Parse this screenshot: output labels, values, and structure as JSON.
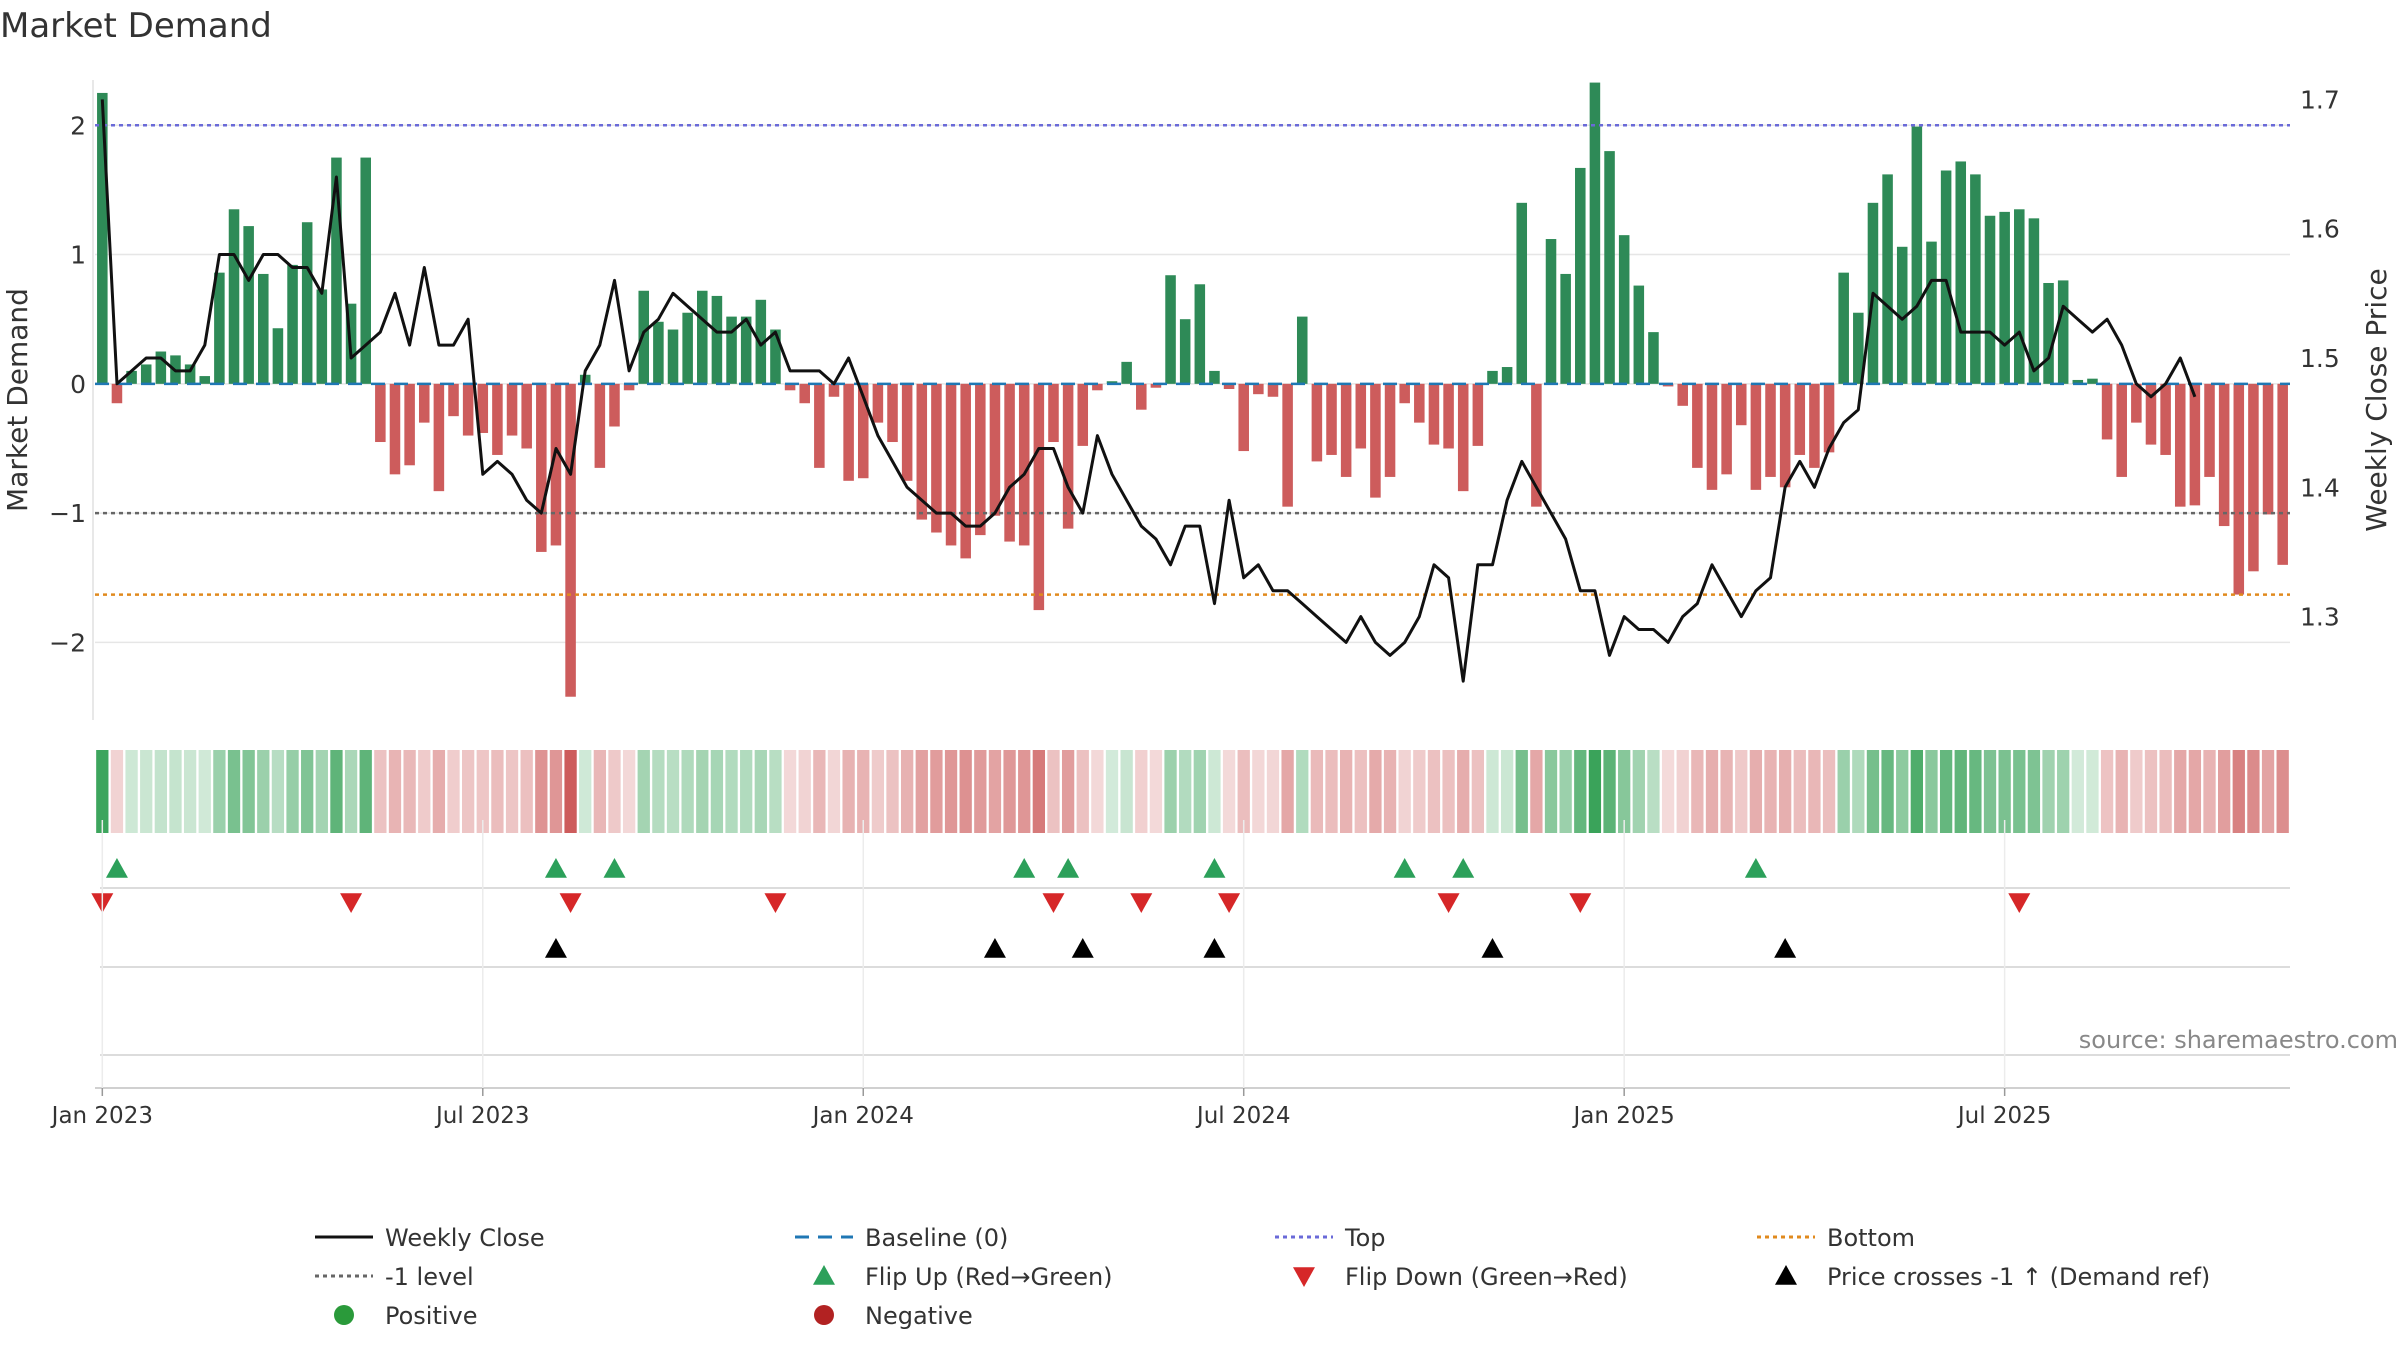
{
  "chart_data": {
    "type": "bar",
    "title": "Market Demand",
    "ylabel": "Market Demand",
    "y2label": "Weekly Close Price",
    "ylim": [
      -2.6,
      2.35
    ],
    "y2lim": [
      1.22,
      1.715
    ],
    "yticks": [
      2,
      1,
      0,
      -1,
      -2
    ],
    "yticklabels": [
      "2",
      "1",
      "0",
      "−1",
      "−2"
    ],
    "y2ticks": [
      1.7,
      1.6,
      1.5,
      1.4,
      1.3
    ],
    "y2ticklabels": [
      "1.7",
      "1.6",
      "1.5",
      "1.4",
      "1.3"
    ],
    "levels": {
      "top": 2.0,
      "minus_one": -1.0,
      "bottom": -1.63
    },
    "x_start": "2022-12-26",
    "x_step_weeks": 1,
    "xticks": [
      {
        "label": "Jan 2023",
        "week": 1
      },
      {
        "label": "Jul 2023",
        "week": 27
      },
      {
        "label": "Jan 2024",
        "week": 53
      },
      {
        "label": "Jul 2024",
        "week": 79
      },
      {
        "label": "Jan 2025",
        "week": 105
      },
      {
        "label": "Jul 2025",
        "week": 131
      }
    ],
    "series": [
      {
        "name": "Market Demand",
        "values": [
          2.25,
          -0.15,
          0.1,
          0.15,
          0.25,
          0.22,
          0.15,
          0.06,
          0.86,
          1.35,
          1.22,
          0.85,
          0.43,
          0.92,
          1.25,
          0.73,
          1.75,
          0.62,
          1.75,
          -0.45,
          -0.7,
          -0.63,
          -0.3,
          -0.83,
          -0.25,
          -0.4,
          -0.38,
          -0.55,
          -0.4,
          -0.5,
          -1.3,
          -1.25,
          -2.42,
          0.07,
          -0.65,
          -0.33,
          -0.05,
          0.72,
          0.48,
          0.42,
          0.55,
          0.72,
          0.68,
          0.52,
          0.52,
          0.65,
          0.42,
          -0.05,
          -0.15,
          -0.65,
          -0.1,
          -0.75,
          -0.73,
          -0.3,
          -0.45,
          -0.75,
          -1.05,
          -1.15,
          -1.25,
          -1.35,
          -1.17,
          -1.02,
          -1.22,
          -1.25,
          -1.75,
          -0.45,
          -1.12,
          -0.48,
          -0.05,
          0.02,
          0.17,
          -0.2,
          -0.03,
          0.84,
          0.5,
          0.77,
          0.1,
          -0.04,
          -0.52,
          -0.08,
          -0.1,
          -0.95,
          0.52,
          -0.6,
          -0.55,
          -0.72,
          -0.5,
          -0.88,
          -0.72,
          -0.15,
          -0.3,
          -0.47,
          -0.5,
          -0.83,
          -0.48,
          0.1,
          0.13,
          1.4,
          -0.95,
          1.12,
          0.85,
          1.67,
          2.33,
          1.8,
          1.15,
          0.76,
          0.4,
          -0.02,
          -0.17,
          -0.65,
          -0.82,
          -0.7,
          -0.32,
          -0.82,
          -0.72,
          -0.8,
          -0.55,
          -0.65,
          -0.53,
          0.86,
          0.55,
          1.4,
          1.62,
          1.06,
          1.99,
          1.1,
          1.65,
          1.72,
          1.62,
          1.3,
          1.33,
          1.35,
          1.28,
          0.78,
          0.8,
          0.03,
          0.04,
          -0.43,
          -0.72,
          -0.3,
          -0.47,
          -0.55,
          -0.95,
          -0.94,
          -0.72,
          -1.1,
          -1.63,
          -1.45,
          -1.01,
          -1.4
        ]
      },
      {
        "name": "Weekly Close",
        "values": [
          1.7,
          1.48,
          1.49,
          1.5,
          1.5,
          1.49,
          1.49,
          1.51,
          1.58,
          1.58,
          1.56,
          1.58,
          1.58,
          1.57,
          1.57,
          1.55,
          1.64,
          1.5,
          1.51,
          1.52,
          1.55,
          1.51,
          1.57,
          1.51,
          1.51,
          1.53,
          1.41,
          1.42,
          1.41,
          1.39,
          1.38,
          1.43,
          1.41,
          1.49,
          1.51,
          1.56,
          1.49,
          1.52,
          1.53,
          1.55,
          1.54,
          1.53,
          1.52,
          1.52,
          1.53,
          1.51,
          1.52,
          1.49,
          1.49,
          1.49,
          1.48,
          1.5,
          1.47,
          1.44,
          1.42,
          1.4,
          1.39,
          1.38,
          1.38,
          1.37,
          1.37,
          1.38,
          1.4,
          1.41,
          1.43,
          1.43,
          1.4,
          1.38,
          1.44,
          1.41,
          1.39,
          1.37,
          1.36,
          1.34,
          1.37,
          1.37,
          1.31,
          1.39,
          1.33,
          1.34,
          1.32,
          1.32,
          1.31,
          1.3,
          1.29,
          1.28,
          1.3,
          1.28,
          1.27,
          1.28,
          1.3,
          1.34,
          1.33,
          1.25,
          1.34,
          1.34,
          1.39,
          1.42,
          1.4,
          1.38,
          1.36,
          1.32,
          1.32,
          1.27,
          1.3,
          1.29,
          1.29,
          1.28,
          1.3,
          1.31,
          1.34,
          1.32,
          1.3,
          1.32,
          1.33,
          1.4,
          1.42,
          1.4,
          1.43,
          1.45,
          1.46,
          1.55,
          1.54,
          1.53,
          1.54,
          1.56,
          1.56,
          1.52,
          1.52,
          1.52,
          1.51,
          1.52,
          1.49,
          1.5,
          1.54,
          1.53,
          1.52,
          1.53,
          1.51,
          1.48,
          1.47,
          1.48,
          1.5,
          1.47
        ]
      }
    ],
    "flip_up_weeks": [
      2,
      32,
      36,
      64,
      67,
      77,
      90,
      94,
      114
    ],
    "flip_down_weeks": [
      1,
      18,
      33,
      47,
      66,
      72,
      78,
      93,
      102,
      132
    ],
    "price_cross_weeks": [
      32,
      62,
      68,
      77,
      96,
      116
    ],
    "legend": [
      {
        "label": "Weekly Close",
        "marker": "line-solid",
        "color": "#111111"
      },
      {
        "label": "Baseline (0)",
        "marker": "line-dashed",
        "color": "#1f77b4"
      },
      {
        "label": "Top",
        "marker": "line-dotted",
        "color": "#6a6ad8"
      },
      {
        "label": "Bottom",
        "marker": "line-dotted",
        "color": "#e08a1e"
      },
      {
        "label": "-1 level",
        "marker": "line-dotted",
        "color": "#666666"
      },
      {
        "label": "Flip Up (Red→Green)",
        "marker": "triangle-up",
        "color": "#2ca05a"
      },
      {
        "label": "Flip Down (Green→Red)",
        "marker": "triangle-down",
        "color": "#d62728"
      },
      {
        "label": "Price crosses -1 ↑ (Demand ref)",
        "marker": "triangle-up",
        "color": "#000000"
      },
      {
        "label": "Positive",
        "marker": "circle",
        "color": "#2a9a3a"
      },
      {
        "label": "Negative",
        "marker": "circle",
        "color": "#b22222"
      }
    ],
    "legend_location": "bottom",
    "source": "source: sharemaestro.com"
  },
  "colors": {
    "positive": "#2e8a57",
    "negative": "#cd5c5c",
    "line": "#111111",
    "grid": "#e6e6e6"
  }
}
